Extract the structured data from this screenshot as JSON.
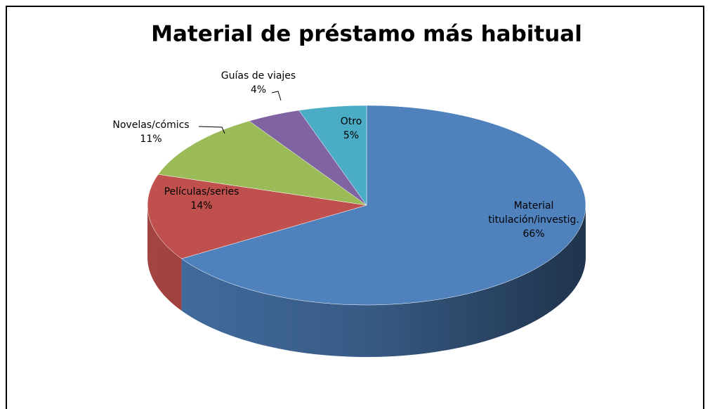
{
  "chart_data": {
    "type": "pie",
    "title": "Material de préstamo más habitual",
    "categories": [
      "Material titulación/investig.",
      "Películas/series",
      "Novelas/cómics",
      "Guías de viajes",
      "Otro"
    ],
    "values": [
      66,
      14,
      11,
      4,
      5
    ],
    "value_labels": [
      "66%",
      "14%",
      "11%",
      "4%",
      "5%"
    ],
    "colors": [
      "#4f81bd",
      "#c0504d",
      "#9bbb59",
      "#8064a2",
      "#4bacc6"
    ]
  }
}
